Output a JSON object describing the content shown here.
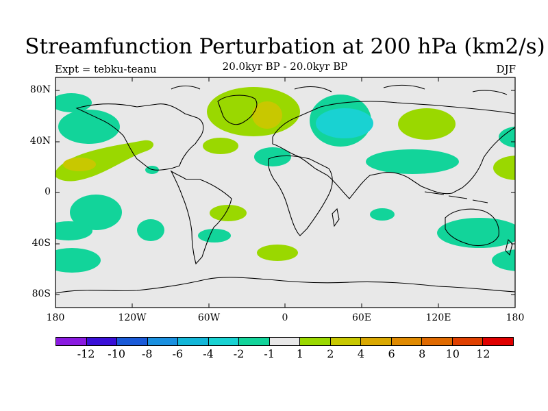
{
  "header": {
    "title": "Streamfunction Perturbation at 200 hPa (km2/s)",
    "expt": "Expt = tebku-teanu",
    "period": "20.0kyr BP - 20.0kyr BP",
    "season": "DJF"
  },
  "axes": {
    "lat_labels": [
      "80N",
      "40N",
      "0",
      "40S",
      "80S"
    ],
    "lon_labels": [
      "180",
      "120W",
      "60W",
      "0",
      "60E",
      "120E",
      "180"
    ]
  },
  "colorbar": {
    "colors": [
      "#8a1ae0",
      "#3a10d8",
      "#1a5ad8",
      "#1a90e0",
      "#12b6d8",
      "#19d2d2",
      "#12d49a",
      "#e8e8e8",
      "#9ad800",
      "#c8c800",
      "#daa800",
      "#e08a00",
      "#e06a00",
      "#e04000",
      "#e00000"
    ],
    "labels": [
      "-12",
      "-10",
      "-8",
      "-6",
      "-4",
      "-2",
      "-1",
      "1",
      "2",
      "4",
      "6",
      "8",
      "10",
      "12"
    ]
  },
  "chart_data": {
    "type": "contour_map",
    "title": "Streamfunction Perturbation at 200 hPa (km2/s)",
    "left_subtitle": "Expt = tebku-teanu",
    "center_subtitle": "20.0kyr BP - 20.0kyr BP",
    "right_subtitle": "DJF",
    "levels": [
      -12,
      -10,
      -8,
      -6,
      -4,
      -2,
      -1,
      1,
      2,
      4,
      6,
      8,
      10,
      12
    ],
    "lon_range": [
      -180,
      180
    ],
    "lat_range": [
      -90,
      90
    ],
    "features": [
      {
        "name": "north-atlantic-high",
        "lon": -28,
        "lat": 63,
        "peak": 4
      },
      {
        "name": "siberian-low",
        "lon": 45,
        "lat": 60,
        "peak": -4
      },
      {
        "name": "east-asia-high",
        "lon": 115,
        "lat": 52,
        "peak": 2
      },
      {
        "name": "north-pacific-high",
        "lon": -150,
        "lat": 22,
        "peak": 4
      },
      {
        "name": "asian-jet-low",
        "lon": 100,
        "lat": 30,
        "peak": -2
      }
    ]
  }
}
